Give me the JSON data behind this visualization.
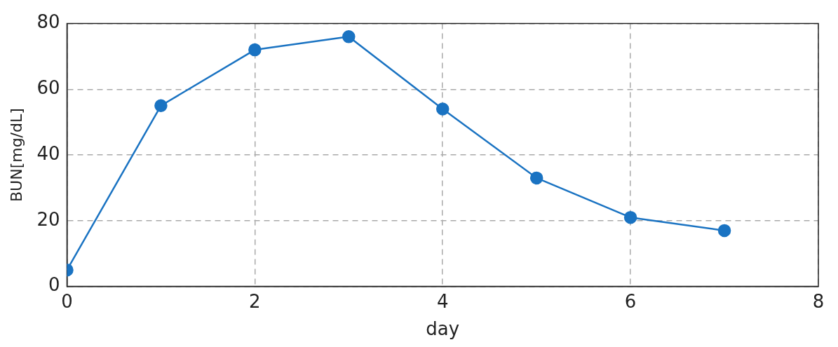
{
  "chart_data": {
    "type": "line",
    "xlabel": "day",
    "ylabel": "BUN[mg/dL]",
    "x": [
      0,
      1,
      2,
      3,
      4,
      5,
      6,
      7
    ],
    "series": [
      {
        "color": "#1a73c2",
        "values": [
          5,
          55,
          72,
          76,
          54,
          33,
          21,
          17
        ]
      }
    ],
    "xlim": [
      0,
      8
    ],
    "xticks": [
      0,
      2,
      4,
      6,
      8
    ],
    "ylim": [
      0,
      80
    ],
    "yticks": [
      0,
      20,
      40,
      60,
      80
    ],
    "grid": true,
    "marker": "circle",
    "line_style": "solid",
    "legend": false
  }
}
